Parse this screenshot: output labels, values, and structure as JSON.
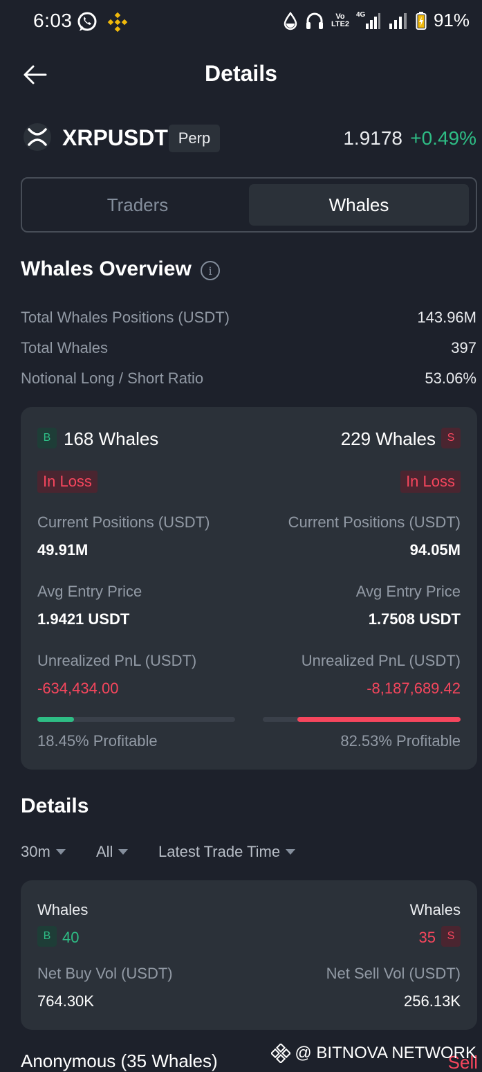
{
  "status_bar": {
    "time": "6:03",
    "battery": "91%",
    "volte_label": "Vo LTE2",
    "network_label": "4G"
  },
  "header": {
    "title": "Details"
  },
  "symbol": {
    "name": "XRPUSDT",
    "type_badge": "Perp",
    "price": "1.9178",
    "change": "+0.49%"
  },
  "tabs": [
    {
      "label": "Traders",
      "active": false
    },
    {
      "label": "Whales",
      "active": true
    }
  ],
  "overview": {
    "title": "Whales Overview",
    "info_glyph": "i",
    "rows": [
      {
        "label": "Total Whales Positions (USDT)",
        "value": "143.96M"
      },
      {
        "label": "Total Whales",
        "value": "397"
      },
      {
        "label": "Notional Long / Short Ratio",
        "value": "53.06%"
      }
    ]
  },
  "whale_card": {
    "long": {
      "badge": "B",
      "count": "168 Whales",
      "status": "In Loss",
      "positions_label": "Current Positions (USDT)",
      "positions_value": "49.91M",
      "entry_label": "Avg Entry Price",
      "entry_value": "1.9421 USDT",
      "pnl_label": "Unrealized PnL (USDT)",
      "pnl_value": "-634,434.00",
      "profitable_fraction": 0.1845,
      "profitable_label": "18.45% Profitable"
    },
    "short": {
      "badge": "S",
      "count": "229 Whales",
      "status": "In Loss",
      "positions_label": "Current Positions (USDT)",
      "positions_value": "94.05M",
      "entry_label": "Avg Entry Price",
      "entry_value": "1.7508 USDT",
      "pnl_label": "Unrealized PnL (USDT)",
      "pnl_value": "-8,187,689.42",
      "profitable_fraction": 0.8253,
      "profitable_label": "82.53% Profitable"
    }
  },
  "details": {
    "title": "Details",
    "filters": [
      {
        "label": "30m"
      },
      {
        "label": "All"
      },
      {
        "label": "Latest Trade Time"
      }
    ],
    "summary": {
      "buy_label": "Whales",
      "buy_badge": "B",
      "buy_count": "40",
      "sell_label": "Whales",
      "sell_badge": "S",
      "sell_count": "35",
      "net_buy_label": "Net Buy Vol (USDT)",
      "net_buy_value": "764.30K",
      "net_sell_label": "Net Sell Vol (USDT)",
      "net_sell_value": "256.13K"
    },
    "next_row_label": "Anonymous (35 Whales)",
    "next_row_side": "Sell"
  },
  "watermark": "@ BITNOVA NETWORK",
  "colors": {
    "background": "#1d212b",
    "card": "#2b3139",
    "green": "#2ebd85",
    "red": "#f6465d",
    "muted": "#929aa5"
  }
}
